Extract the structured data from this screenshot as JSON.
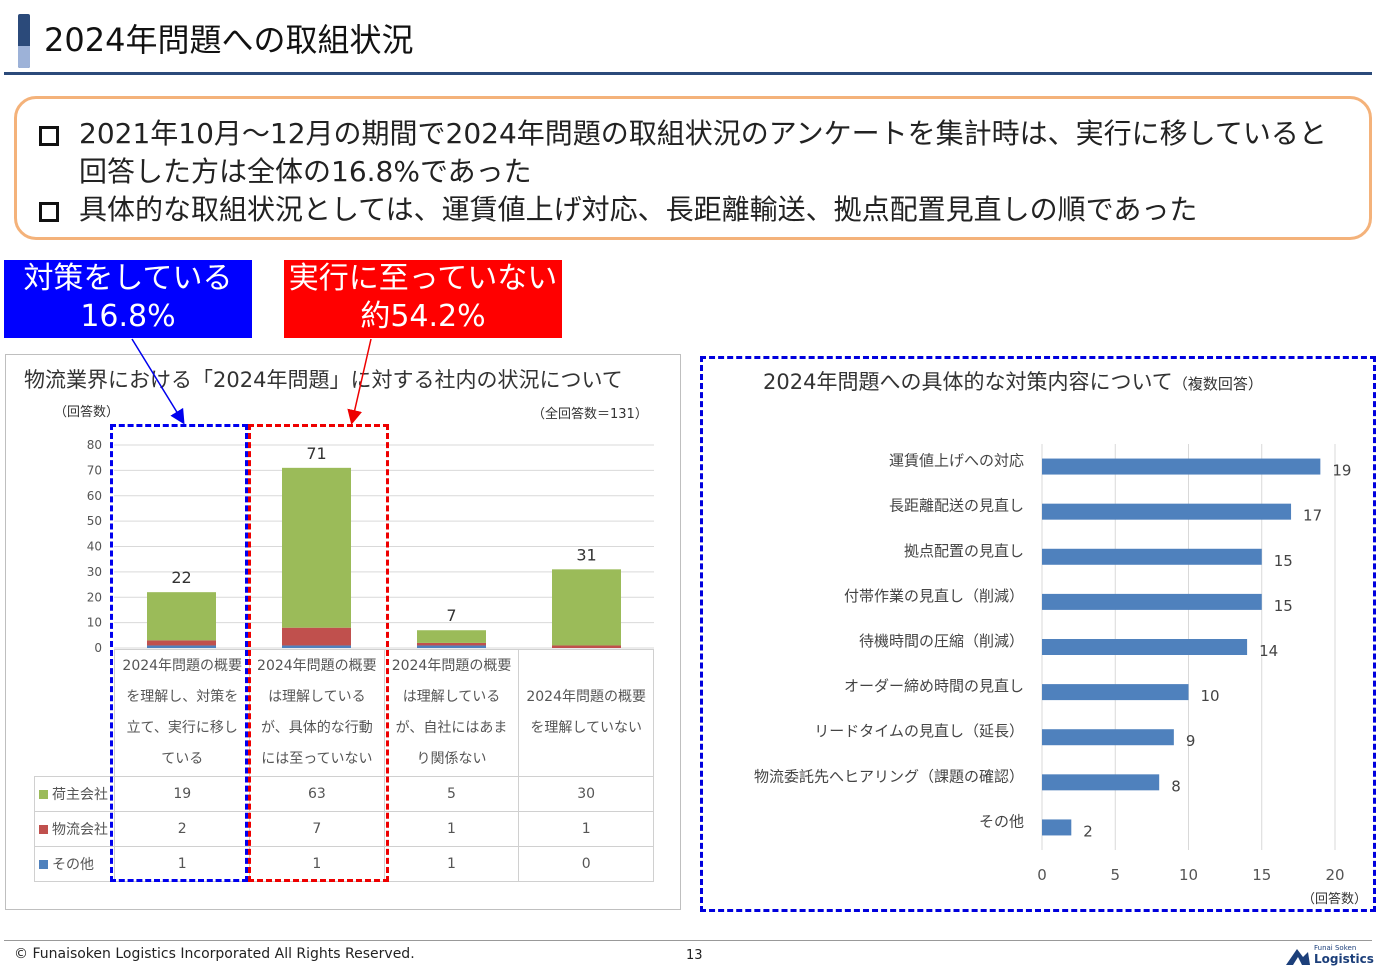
{
  "header": {
    "title": "2024年問題への取組状況"
  },
  "summary": {
    "bullets": [
      "2021年10月～12月の期間で2024年問題の取組状況のアンケートを集計時は、実行に移していると回答した方は全体の16.8%であった",
      "具体的な取組状況としては、運賃値上げ対応、長距離輸送、拠点配置見直しの順であった"
    ]
  },
  "callouts": {
    "blue": {
      "line1": "対策をしている",
      "line2": "16.8%",
      "color": "#0000ff"
    },
    "red": {
      "line1": "実行に至っていない",
      "line2": "約54.2%",
      "color": "#ff0000"
    }
  },
  "left_chart_text": {
    "title": "物流業界における「2024年問題」に対する社内の状況について",
    "yunit": "（回答数）",
    "total": "（全回答数＝131）"
  },
  "right_chart_text": {
    "title": "2024年問題への具体的な対策内容について",
    "title_note": "（複数回答）",
    "xunit": "（回答数）"
  },
  "chart_data": [
    {
      "type": "bar",
      "stacked": true,
      "title": "物流業界における「2024年問題」に対する社内の状況について",
      "ylabel": "（回答数）",
      "categories": [
        "2024年問題の概要を理解し、対策を立て、実行に移している",
        "2024年問題の概要は理解しているが、具体的な行動には至っていない",
        "2024年問題の概要は理解しているが、自社にはあまり関係ない",
        "2024年問題の概要を理解していない"
      ],
      "category_lines": [
        [
          "2024年問題の概要",
          "を理解し、対策を",
          "立て、実行に移し",
          "ている"
        ],
        [
          "2024年問題の概要",
          "は理解している",
          "が、具体的な行動",
          "には至っていない"
        ],
        [
          "2024年問題の概要",
          "は理解している",
          "が、自社にはあま",
          "り関係ない"
        ],
        [
          "2024年問題の概要",
          "を理解していない"
        ]
      ],
      "series": [
        {
          "name": "荷主会社",
          "values": [
            19,
            63,
            5,
            30
          ],
          "color": "#9bbb59"
        },
        {
          "name": "物流会社",
          "values": [
            2,
            7,
            1,
            1
          ],
          "color": "#c0504d"
        },
        {
          "name": "その他",
          "values": [
            1,
            1,
            1,
            0
          ],
          "color": "#4f81bd"
        }
      ],
      "totals": [
        22,
        71,
        7,
        31
      ],
      "ylim": [
        0,
        80
      ],
      "yticks": [
        0,
        10,
        20,
        30,
        40,
        50,
        60,
        70,
        80
      ],
      "grid": true,
      "legend": "data-table"
    },
    {
      "type": "bar",
      "orientation": "horizontal",
      "title": "2024年問題への具体的な対策内容について（複数回答）",
      "xlabel": "（回答数）",
      "categories": [
        "運賃値上げへの対応",
        "長距離配送の見直し",
        "拠点配置の見直し",
        "付帯作業の見直し（削減）",
        "待機時間の圧縮（削減）",
        "オーダー締め時間の見直し",
        "リードタイムの見直し（延長）",
        "物流委託先へヒアリング（課題の確認）",
        "その他"
      ],
      "values": [
        19,
        17,
        15,
        15,
        14,
        10,
        9,
        8,
        2
      ],
      "color": "#4f81bd",
      "xlim": [
        0,
        20
      ],
      "xticks": [
        0,
        5,
        10,
        15,
        20
      ],
      "grid": true
    }
  ],
  "footer": {
    "copyright": "© Funaisoken Logistics Incorporated All Rights Reserved.",
    "page": "13",
    "brand_small": "Funai Soken",
    "brand_main": "Logistics",
    "brand_color": "#1c3f7a"
  }
}
